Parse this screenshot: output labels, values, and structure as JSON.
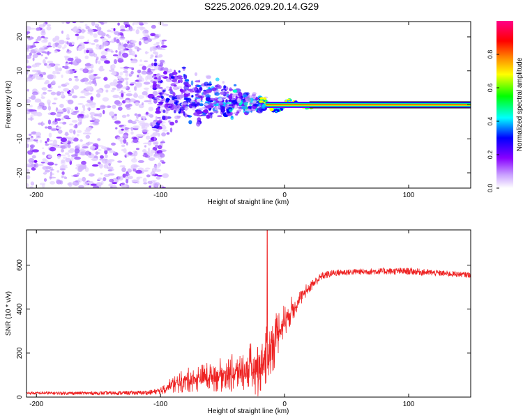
{
  "title": "S225.2026.029.20.14.G29",
  "chart_data": [
    {
      "type": "heatmap",
      "name": "spectrogram",
      "xlabel": "Height of straight line (km)",
      "ylabel": "Frequency (Hz)",
      "xlim": [
        -208,
        150
      ],
      "ylim": [
        -24.5,
        24.5
      ],
      "xticks": [
        -200,
        -100,
        0,
        100
      ],
      "yticks": [
        -20,
        -10,
        0,
        10,
        20
      ],
      "colorbar": {
        "label": "Normalized spectral amplitude",
        "range": [
          0,
          1
        ],
        "ticks": [
          "0.0",
          "0.2",
          "0.4",
          "0.6",
          "0.8"
        ],
        "colors": [
          "#ffffff",
          "#8800ff",
          "#0000ff",
          "#00ffff",
          "#00ff00",
          "#ffff00",
          "#ff8800",
          "#ff0000",
          "#ff0088"
        ]
      },
      "features": {
        "noise_region_x": [
          -208,
          -100
        ],
        "transition_x": [
          -105,
          -15
        ],
        "tone_start_x": -15,
        "tone_frequency_hz": 0
      }
    },
    {
      "type": "line",
      "name": "snr",
      "xlabel": "Height of straight line (km)",
      "ylabel": "SNR (10 * v/v)",
      "xlim": [
        -208,
        150
      ],
      "ylim": [
        0,
        760
      ],
      "xticks": [
        -200,
        -100,
        0,
        100
      ],
      "yticks": [
        0,
        200,
        400,
        600
      ],
      "color": "#ee2222",
      "series": [
        {
          "name": "SNR",
          "x": [
            -208,
            -150,
            -110,
            -100,
            -90,
            -80,
            -60,
            -40,
            -30,
            -20,
            -15,
            -10,
            0,
            10,
            20,
            30,
            40,
            60,
            80,
            100,
            120,
            150
          ],
          "mean": [
            18,
            18,
            20,
            28,
            55,
            75,
            95,
            110,
            125,
            140,
            170,
            240,
            350,
            430,
            500,
            550,
            565,
            570,
            572,
            572,
            565,
            555
          ],
          "amp": [
            6,
            8,
            10,
            15,
            40,
            55,
            70,
            90,
            110,
            140,
            160,
            140,
            80,
            50,
            25,
            18,
            15,
            14,
            15,
            16,
            14,
            12
          ]
        }
      ],
      "peak": {
        "x": -14,
        "y": 760
      }
    }
  ]
}
